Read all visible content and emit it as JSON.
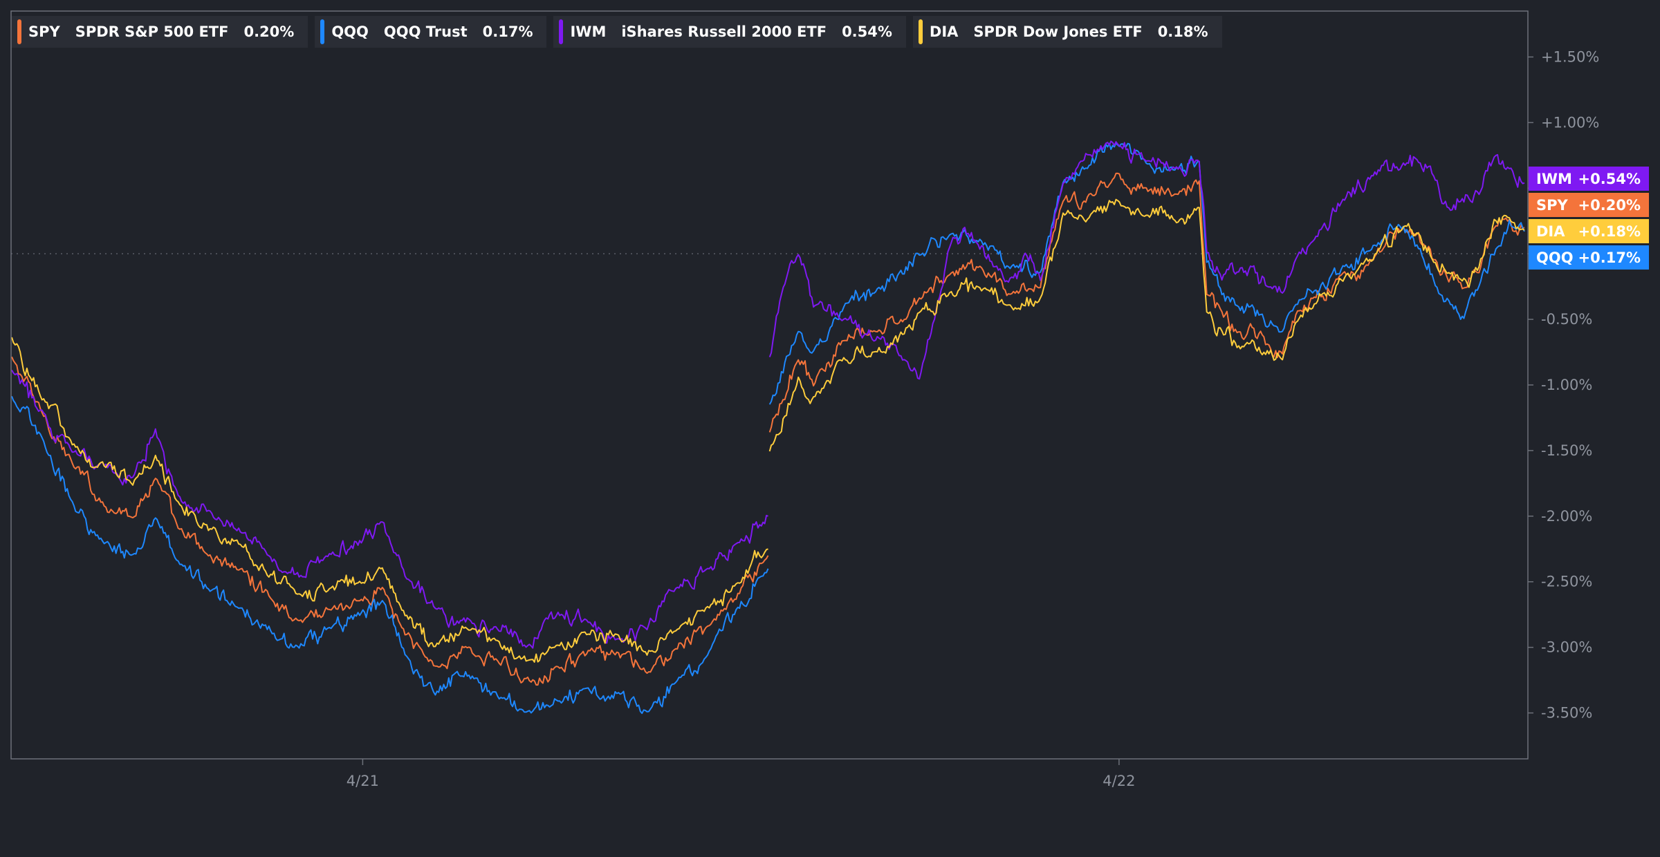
{
  "legend": [
    {
      "symbol": "SPY",
      "name": "SPDR S&P 500 ETF",
      "value": "0.20%",
      "color": "#f4743b"
    },
    {
      "symbol": "QQQ",
      "name": "QQQ Trust",
      "value": "0.17%",
      "color": "#1e88ff"
    },
    {
      "symbol": "IWM",
      "name": "iShares Russell 2000 ETF",
      "value": "0.54%",
      "color": "#7f19f2"
    },
    {
      "symbol": "DIA",
      "name": "SPDR Dow Jones ETF",
      "value": "0.18%",
      "color": "#ffcd3c"
    }
  ],
  "chart_data": {
    "type": "line",
    "y_unit": "percent change",
    "ylim": [
      -3.85,
      1.85
    ],
    "y_ticks": [
      1.5,
      1.0,
      0.5,
      0.0,
      -0.5,
      -1.0,
      -1.5,
      -2.0,
      -2.5,
      -3.0,
      -3.5
    ],
    "y_tick_labels": [
      "+1.50%",
      "+1.00%",
      "",
      "",
      "-0.50%",
      "-1.00%",
      "-1.50%",
      "-2.00%",
      "-2.50%",
      "-3.00%",
      "-3.50%"
    ],
    "x_range": [
      0,
      100
    ],
    "x_ticks": [
      {
        "x": 23.2,
        "label": "4/21"
      },
      {
        "x": 73.2,
        "label": "4/22"
      }
    ],
    "baseline": 0,
    "grid": false,
    "legend_position": "top-left",
    "series": [
      {
        "name": "SPY",
        "color": "#f4743b",
        "last_label": "+0.20%",
        "points": [
          [
            0,
            -0.8
          ],
          [
            2,
            -1.2
          ],
          [
            4,
            -1.6
          ],
          [
            6,
            -1.9
          ],
          [
            8,
            -2.0
          ],
          [
            9.5,
            -1.7
          ],
          [
            11,
            -2.1
          ],
          [
            13,
            -2.3
          ],
          [
            15,
            -2.4
          ],
          [
            17,
            -2.6
          ],
          [
            19,
            -2.8
          ],
          [
            21,
            -2.7
          ],
          [
            23,
            -2.65
          ],
          [
            24.5,
            -2.55
          ],
          [
            26,
            -2.9
          ],
          [
            28,
            -3.15
          ],
          [
            30,
            -3.0
          ],
          [
            32,
            -3.1
          ],
          [
            34,
            -3.25
          ],
          [
            36,
            -3.15
          ],
          [
            38,
            -3.05
          ],
          [
            40,
            -3.05
          ],
          [
            42,
            -3.2
          ],
          [
            44,
            -3.0
          ],
          [
            46,
            -2.85
          ],
          [
            48,
            -2.6
          ],
          [
            50,
            -2.3
          ],
          [
            50.1,
            -1.35
          ],
          [
            52,
            -0.8
          ],
          [
            53,
            -1.0
          ],
          [
            55,
            -0.65
          ],
          [
            57,
            -0.6
          ],
          [
            59,
            -0.5
          ],
          [
            60,
            -0.35
          ],
          [
            62,
            -0.15
          ],
          [
            64,
            -0.1
          ],
          [
            66,
            -0.3
          ],
          [
            68,
            -0.25
          ],
          [
            69.5,
            0.4
          ],
          [
            71,
            0.4
          ],
          [
            73,
            0.6
          ],
          [
            75,
            0.5
          ],
          [
            77,
            0.45
          ],
          [
            78.5,
            0.55
          ],
          [
            79,
            -0.3
          ],
          [
            80,
            -0.45
          ],
          [
            81,
            -0.6
          ],
          [
            82,
            -0.55
          ],
          [
            83,
            -0.7
          ],
          [
            84,
            -0.75
          ],
          [
            85,
            -0.45
          ],
          [
            86,
            -0.35
          ],
          [
            88,
            -0.15
          ],
          [
            90,
            -0.05
          ],
          [
            92,
            0.2
          ],
          [
            93,
            0.15
          ],
          [
            94,
            -0.05
          ],
          [
            95,
            -0.2
          ],
          [
            96,
            -0.25
          ],
          [
            97,
            -0.15
          ],
          [
            98,
            0.2
          ],
          [
            99,
            0.25
          ],
          [
            100,
            0.2
          ]
        ]
      },
      {
        "name": "QQQ",
        "color": "#1e88ff",
        "last_label": "+0.17%",
        "points": [
          [
            0,
            -1.1
          ],
          [
            2,
            -1.4
          ],
          [
            4,
            -1.9
          ],
          [
            6,
            -2.2
          ],
          [
            8,
            -2.3
          ],
          [
            9.5,
            -2.0
          ],
          [
            11,
            -2.35
          ],
          [
            13,
            -2.55
          ],
          [
            15,
            -2.7
          ],
          [
            17,
            -2.85
          ],
          [
            19,
            -3.0
          ],
          [
            21,
            -2.85
          ],
          [
            23,
            -2.75
          ],
          [
            24.5,
            -2.65
          ],
          [
            26,
            -3.05
          ],
          [
            28,
            -3.35
          ],
          [
            30,
            -3.2
          ],
          [
            32,
            -3.35
          ],
          [
            34,
            -3.5
          ],
          [
            36,
            -3.4
          ],
          [
            38,
            -3.3
          ],
          [
            40,
            -3.35
          ],
          [
            42,
            -3.5
          ],
          [
            44,
            -3.25
          ],
          [
            46,
            -3.05
          ],
          [
            48,
            -2.7
          ],
          [
            50,
            -2.4
          ],
          [
            50.1,
            -1.15
          ],
          [
            52,
            -0.6
          ],
          [
            53,
            -0.75
          ],
          [
            55,
            -0.4
          ],
          [
            57,
            -0.3
          ],
          [
            59,
            -0.15
          ],
          [
            60,
            0.0
          ],
          [
            62,
            0.15
          ],
          [
            64,
            0.1
          ],
          [
            66,
            -0.1
          ],
          [
            68,
            -0.15
          ],
          [
            69.5,
            0.55
          ],
          [
            71,
            0.65
          ],
          [
            73,
            0.85
          ],
          [
            75,
            0.7
          ],
          [
            77,
            0.65
          ],
          [
            78.5,
            0.7
          ],
          [
            79,
            -0.05
          ],
          [
            80,
            -0.3
          ],
          [
            81,
            -0.4
          ],
          [
            82,
            -0.4
          ],
          [
            83,
            -0.55
          ],
          [
            84,
            -0.6
          ],
          [
            85,
            -0.4
          ],
          [
            86,
            -0.3
          ],
          [
            88,
            -0.1
          ],
          [
            90,
            0.05
          ],
          [
            92,
            0.2
          ],
          [
            93,
            0.05
          ],
          [
            94,
            -0.2
          ],
          [
            95,
            -0.35
          ],
          [
            96,
            -0.5
          ],
          [
            97,
            -0.25
          ],
          [
            98,
            0.0
          ],
          [
            99,
            0.25
          ],
          [
            100,
            0.17
          ]
        ]
      },
      {
        "name": "IWM",
        "color": "#7f19f2",
        "last_label": "+0.54%",
        "points": [
          [
            0,
            -0.9
          ],
          [
            2,
            -1.2
          ],
          [
            4,
            -1.5
          ],
          [
            6,
            -1.6
          ],
          [
            8,
            -1.7
          ],
          [
            9.5,
            -1.35
          ],
          [
            11,
            -1.85
          ],
          [
            13,
            -1.95
          ],
          [
            15,
            -2.1
          ],
          [
            17,
            -2.3
          ],
          [
            19,
            -2.45
          ],
          [
            21,
            -2.3
          ],
          [
            23,
            -2.2
          ],
          [
            24.5,
            -2.05
          ],
          [
            26,
            -2.45
          ],
          [
            28,
            -2.7
          ],
          [
            30,
            -2.8
          ],
          [
            32,
            -2.85
          ],
          [
            34,
            -3.0
          ],
          [
            36,
            -2.75
          ],
          [
            38,
            -2.8
          ],
          [
            40,
            -2.95
          ],
          [
            42,
            -2.85
          ],
          [
            44,
            -2.55
          ],
          [
            46,
            -2.4
          ],
          [
            48,
            -2.2
          ],
          [
            50,
            -2.0
          ],
          [
            50.1,
            -0.8
          ],
          [
            51,
            -0.25
          ],
          [
            52,
            0.0
          ],
          [
            53,
            -0.4
          ],
          [
            55,
            -0.5
          ],
          [
            57,
            -0.65
          ],
          [
            59,
            -0.8
          ],
          [
            60,
            -0.95
          ],
          [
            61,
            -0.5
          ],
          [
            62,
            0.05
          ],
          [
            63,
            0.2
          ],
          [
            64,
            0.05
          ],
          [
            65,
            -0.1
          ],
          [
            66,
            -0.2
          ],
          [
            67,
            0.0
          ],
          [
            68,
            -0.2
          ],
          [
            69.5,
            0.55
          ],
          [
            71,
            0.75
          ],
          [
            73,
            0.85
          ],
          [
            75,
            0.7
          ],
          [
            77,
            0.65
          ],
          [
            78.5,
            0.7
          ],
          [
            79,
            0.0
          ],
          [
            80,
            -0.2
          ],
          [
            81,
            -0.15
          ],
          [
            82,
            -0.1
          ],
          [
            83,
            -0.25
          ],
          [
            84,
            -0.3
          ],
          [
            85,
            0.0
          ],
          [
            86,
            0.1
          ],
          [
            88,
            0.4
          ],
          [
            90,
            0.6
          ],
          [
            92,
            0.7
          ],
          [
            93,
            0.7
          ],
          [
            94,
            0.6
          ],
          [
            95,
            0.35
          ],
          [
            96,
            0.4
          ],
          [
            97,
            0.45
          ],
          [
            98,
            0.75
          ],
          [
            99,
            0.65
          ],
          [
            100,
            0.54
          ]
        ]
      },
      {
        "name": "DIA",
        "color": "#ffcd3c",
        "last_label": "+0.18%",
        "points": [
          [
            0,
            -0.65
          ],
          [
            2,
            -1.1
          ],
          [
            4,
            -1.45
          ],
          [
            6,
            -1.6
          ],
          [
            8,
            -1.75
          ],
          [
            9.5,
            -1.55
          ],
          [
            11,
            -1.9
          ],
          [
            13,
            -2.1
          ],
          [
            15,
            -2.2
          ],
          [
            17,
            -2.45
          ],
          [
            19,
            -2.6
          ],
          [
            21,
            -2.55
          ],
          [
            23,
            -2.5
          ],
          [
            24.5,
            -2.4
          ],
          [
            26,
            -2.75
          ],
          [
            28,
            -3.0
          ],
          [
            30,
            -2.85
          ],
          [
            32,
            -2.95
          ],
          [
            34,
            -3.1
          ],
          [
            36,
            -3.0
          ],
          [
            38,
            -2.9
          ],
          [
            40,
            -2.9
          ],
          [
            42,
            -3.05
          ],
          [
            44,
            -2.85
          ],
          [
            46,
            -2.7
          ],
          [
            48,
            -2.5
          ],
          [
            50,
            -2.25
          ],
          [
            50.1,
            -1.5
          ],
          [
            52,
            -0.95
          ],
          [
            53,
            -1.1
          ],
          [
            55,
            -0.8
          ],
          [
            57,
            -0.75
          ],
          [
            59,
            -0.6
          ],
          [
            60,
            -0.45
          ],
          [
            62,
            -0.3
          ],
          [
            64,
            -0.25
          ],
          [
            66,
            -0.4
          ],
          [
            68,
            -0.35
          ],
          [
            69.5,
            0.3
          ],
          [
            71,
            0.25
          ],
          [
            73,
            0.4
          ],
          [
            75,
            0.3
          ],
          [
            77,
            0.25
          ],
          [
            78.5,
            0.35
          ],
          [
            79,
            -0.45
          ],
          [
            80,
            -0.6
          ],
          [
            81,
            -0.7
          ],
          [
            82,
            -0.65
          ],
          [
            83,
            -0.75
          ],
          [
            84,
            -0.8
          ],
          [
            85,
            -0.5
          ],
          [
            86,
            -0.4
          ],
          [
            88,
            -0.2
          ],
          [
            90,
            -0.05
          ],
          [
            92,
            0.2
          ],
          [
            93,
            0.15
          ],
          [
            94,
            -0.05
          ],
          [
            95,
            -0.15
          ],
          [
            96,
            -0.2
          ],
          [
            97,
            -0.1
          ],
          [
            98,
            0.25
          ],
          [
            99,
            0.28
          ],
          [
            100,
            0.18
          ]
        ]
      }
    ],
    "badge_order": [
      "IWM",
      "SPY",
      "DIA",
      "QQQ"
    ]
  }
}
